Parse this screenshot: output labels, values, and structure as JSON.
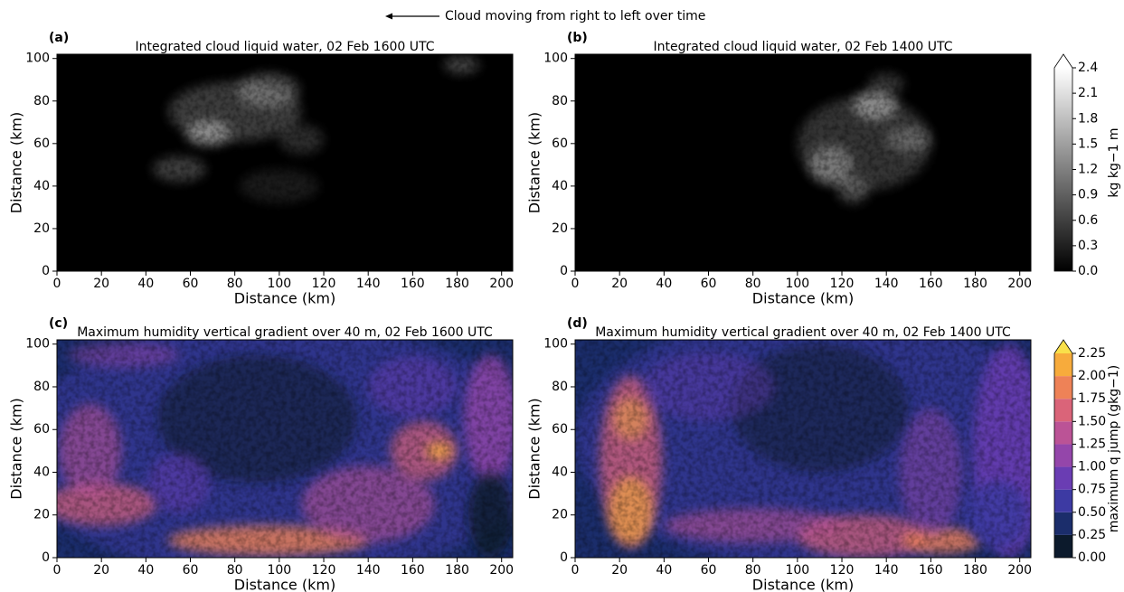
{
  "chart_data": [
    {
      "type": "heatmap",
      "panel": "(a)",
      "title": "Integrated cloud liquid water, 02 Feb 1600 UTC",
      "annotation": "Cloud moving from right to left over time",
      "xlabel": "Distance (km)",
      "ylabel": "Distance (km)",
      "xlim": [
        0,
        205
      ],
      "ylim": [
        0,
        102
      ],
      "xticks": [
        0,
        20,
        40,
        60,
        80,
        100,
        120,
        140,
        160,
        180,
        200
      ],
      "yticks": [
        0,
        20,
        40,
        60,
        80,
        100
      ]
    },
    {
      "type": "heatmap",
      "panel": "(b)",
      "title": "Integrated cloud liquid water, 02 Feb 1400 UTC",
      "xlabel": "Distance (km)",
      "ylabel": "Distance (km)",
      "xlim": [
        0,
        205
      ],
      "ylim": [
        0,
        102
      ],
      "xticks": [
        0,
        20,
        40,
        60,
        80,
        100,
        120,
        140,
        160,
        180,
        200
      ],
      "yticks": [
        0,
        20,
        40,
        60,
        80,
        100
      ],
      "colorbar": {
        "label": "kg kg−1 m",
        "lim": [
          0,
          2.4
        ],
        "colors": [
          "#000000",
          "#ffffff"
        ],
        "ticks": [
          {
            "value": 0,
            "label": "0.0"
          },
          {
            "value": 0.3,
            "label": "0.3"
          },
          {
            "value": 0.6,
            "label": "0.6"
          },
          {
            "value": 0.9,
            "label": "0.9"
          },
          {
            "value": 1.2,
            "label": "1.2"
          },
          {
            "value": 1.5,
            "label": "1.5"
          },
          {
            "value": 1.8,
            "label": "1.8"
          },
          {
            "value": 2.1,
            "label": "2.1"
          },
          {
            "value": 2.4,
            "label": "2.4"
          }
        ]
      }
    },
    {
      "type": "heatmap",
      "panel": "(c)",
      "title": "Maximum humidity vertical gradient over 40 m, 02 Feb 1600 UTC",
      "xlabel": "Distance (km)",
      "ylabel": "Distance (km)",
      "xlim": [
        0,
        205
      ],
      "ylim": [
        0,
        102
      ],
      "xticks": [
        0,
        20,
        40,
        60,
        80,
        100,
        120,
        140,
        160,
        180,
        200
      ],
      "yticks": [
        0,
        20,
        40,
        60,
        80,
        100
      ]
    },
    {
      "type": "heatmap",
      "panel": "(d)",
      "title": "Maximum humidity vertical gradient over 40 m, 02 Feb 1400 UTC",
      "xlabel": "Distance (km)",
      "ylabel": "Distance (km)",
      "xlim": [
        0,
        205
      ],
      "ylim": [
        0,
        102
      ],
      "xticks": [
        0,
        20,
        40,
        60,
        80,
        100,
        120,
        140,
        160,
        180,
        200
      ],
      "yticks": [
        0,
        20,
        40,
        60,
        80,
        100
      ],
      "colorbar": {
        "label": "maximum q jump (gkg−1)",
        "lim": [
          0,
          2.25
        ],
        "colors": [
          "#0c1a2c",
          "#1b2d6b",
          "#3d3aa3",
          "#6a3db3",
          "#9446aa",
          "#bb5396",
          "#da6479",
          "#ee8257",
          "#f7ab3c",
          "#f9e04a"
        ],
        "ticks": [
          {
            "value": 0,
            "label": "0.00"
          },
          {
            "value": 0.25,
            "label": "0.25"
          },
          {
            "value": 0.5,
            "label": "0.50"
          },
          {
            "value": 0.75,
            "label": "0.75"
          },
          {
            "value": 1,
            "label": "1.00"
          },
          {
            "value": 1.25,
            "label": "1.25"
          },
          {
            "value": 1.5,
            "label": "1.50"
          },
          {
            "value": 1.75,
            "label": "1.75"
          },
          {
            "value": 2,
            "label": "2.00"
          },
          {
            "value": 2.25,
            "label": "2.25"
          }
        ]
      }
    }
  ]
}
